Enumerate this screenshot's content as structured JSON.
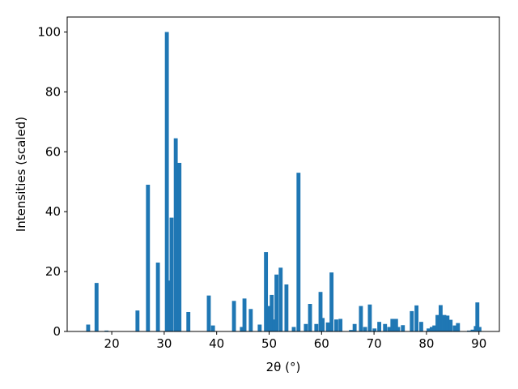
{
  "chart_data": {
    "type": "bar",
    "x_label": "2θ (°)",
    "y_label": "Intensities (scaled)",
    "x": [
      15.5,
      17.1,
      19.0,
      24.9,
      26.9,
      28.8,
      30.5,
      31.0,
      31.4,
      32.2,
      32.9,
      34.6,
      38.5,
      39.3,
      43.3,
      44.8,
      45.3,
      46.5,
      48.2,
      49.4,
      50.1,
      50.5,
      51.0,
      51.4,
      52.2,
      53.3,
      54.7,
      55.6,
      57.0,
      57.8,
      59.0,
      59.8,
      60.2,
      61.2,
      61.9,
      62.8,
      63.6,
      65.6,
      66.3,
      67.5,
      68.3,
      69.2,
      70.1,
      71.0,
      72.1,
      72.9,
      73.5,
      74.2,
      74.6,
      75.5,
      77.2,
      78.1,
      79.0,
      80.4,
      81.0,
      81.5,
      82.1,
      82.7,
      83.4,
      84.0,
      84.6,
      85.4,
      86.0,
      88.1,
      88.8,
      89.4,
      89.7,
      90.1
    ],
    "values": [
      2.3,
      16.2,
      0.3,
      7,
      49,
      23,
      100,
      17,
      38,
      64.5,
      56.3,
      6.5,
      12,
      2,
      10.2,
      1.5,
      11,
      7.5,
      2.3,
      26.5,
      8.5,
      12.2,
      4,
      19,
      21.3,
      15.7,
      1.5,
      53,
      2.5,
      9.2,
      2.5,
      13.2,
      4.5,
      3,
      19.7,
      4,
      4.2,
      0.5,
      2.5,
      8.5,
      1.5,
      9,
      1,
      3.2,
      2.5,
      1.5,
      4.2,
      4.2,
      1.5,
      2.1,
      6.8,
      8.7,
      3.2,
      1,
      1.5,
      2,
      5.5,
      8.8,
      5.5,
      5.3,
      3.9,
      2,
      2.8,
      0.3,
      0.6,
      1.8,
      9.7,
      1.5
    ],
    "color": "#1f77b4",
    "xlim": [
      11.5,
      93.9
    ],
    "ylim": [
      0,
      105
    ],
    "xticks": [
      20,
      30,
      40,
      50,
      60,
      70,
      80,
      90
    ],
    "yticks": [
      0,
      20,
      40,
      60,
      80,
      100
    ]
  }
}
